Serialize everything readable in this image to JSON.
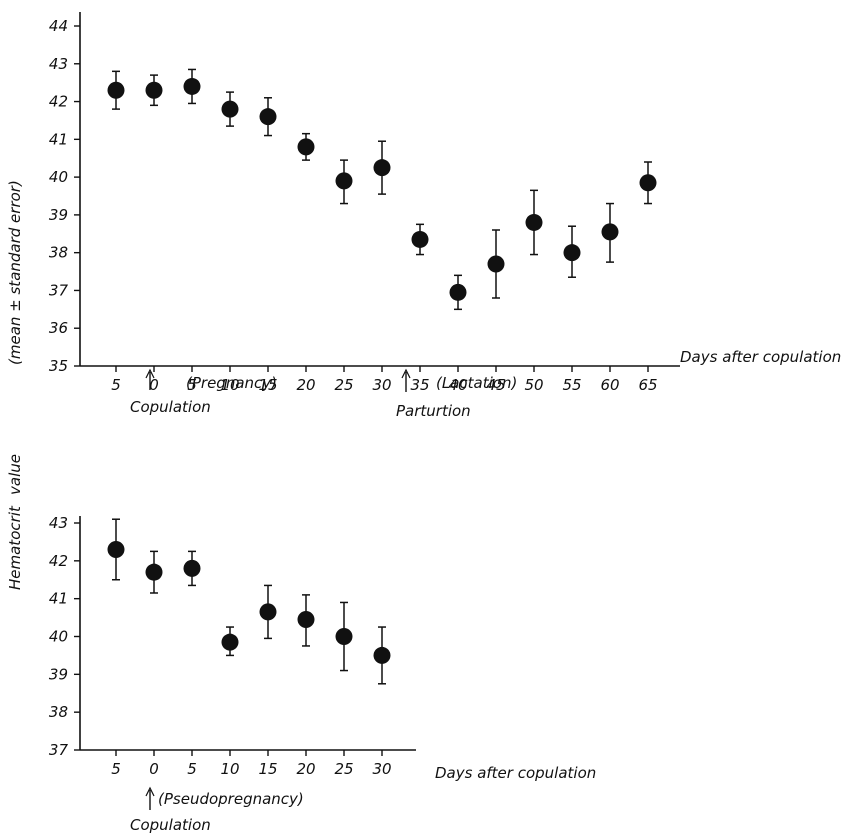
{
  "y_axis_label": {
    "line1": "Hematocrit",
    "line2": "value",
    "line3": "(mean ± standard error)"
  },
  "chart_data": [
    {
      "type": "scatter",
      "error_bars": "mean ± standard error",
      "x_tick_labels": [
        "5",
        "0",
        "5",
        "10",
        "15",
        "20",
        "25",
        "30",
        "35",
        "40",
        "45",
        "50",
        "55",
        "60",
        "65"
      ],
      "xlabel": "Days after copulation",
      "ylim": [
        35,
        44
      ],
      "y_ticks": [
        35,
        36,
        37,
        38,
        39,
        40,
        41,
        42,
        43,
        44
      ],
      "points": [
        {
          "x": "5",
          "y": 42.3,
          "low": 41.8,
          "high": 42.8
        },
        {
          "x": "0",
          "y": 42.3,
          "low": 41.9,
          "high": 42.7
        },
        {
          "x": "5",
          "y": 42.4,
          "low": 41.95,
          "high": 42.85
        },
        {
          "x": "10",
          "y": 41.8,
          "low": 41.35,
          "high": 42.25
        },
        {
          "x": "15",
          "y": 41.6,
          "low": 41.1,
          "high": 42.1
        },
        {
          "x": "20",
          "y": 40.8,
          "low": 40.45,
          "high": 41.15
        },
        {
          "x": "25",
          "y": 39.9,
          "low": 39.3,
          "high": 40.45
        },
        {
          "x": "30",
          "y": 40.25,
          "low": 39.55,
          "high": 40.95
        },
        {
          "x": "35",
          "y": 38.35,
          "low": 37.95,
          "high": 38.75
        },
        {
          "x": "40",
          "y": 36.95,
          "low": 36.5,
          "high": 37.4
        },
        {
          "x": "45",
          "y": 37.7,
          "low": 36.8,
          "high": 38.6
        },
        {
          "x": "50",
          "y": 38.8,
          "low": 37.95,
          "high": 39.65
        },
        {
          "x": "55",
          "y": 38.0,
          "low": 37.35,
          "high": 38.7
        },
        {
          "x": "60",
          "y": 38.55,
          "low": 37.75,
          "high": 39.3
        },
        {
          "x": "65",
          "y": 39.85,
          "low": 39.3,
          "high": 40.4
        }
      ],
      "annotations": {
        "copulation": "Copulation",
        "pregnancy": "(Pregnancy)",
        "parturition": "Parturtion",
        "lactation": "(Lactation)"
      }
    },
    {
      "type": "scatter",
      "error_bars": "mean ± standard error",
      "x_tick_labels": [
        "5",
        "0",
        "5",
        "10",
        "15",
        "20",
        "25",
        "30"
      ],
      "xlabel": "Days after copulation",
      "ylim": [
        37,
        43
      ],
      "y_ticks": [
        37,
        38,
        39,
        40,
        41,
        42,
        43
      ],
      "points": [
        {
          "x": "5",
          "y": 42.3,
          "low": 41.5,
          "high": 43.1
        },
        {
          "x": "0",
          "y": 41.7,
          "low": 41.15,
          "high": 42.25
        },
        {
          "x": "5",
          "y": 41.8,
          "low": 41.35,
          "high": 42.25
        },
        {
          "x": "10",
          "y": 39.85,
          "low": 39.5,
          "high": 40.25
        },
        {
          "x": "15",
          "y": 40.65,
          "low": 39.95,
          "high": 41.35
        },
        {
          "x": "20",
          "y": 40.45,
          "low": 39.75,
          "high": 41.1
        },
        {
          "x": "25",
          "y": 40.0,
          "low": 39.1,
          "high": 40.9
        },
        {
          "x": "30",
          "y": 39.5,
          "low": 38.75,
          "high": 40.25
        }
      ],
      "annotations": {
        "copulation": "Copulation",
        "pseudopregnancy": "(Pseudopregnancy)"
      }
    }
  ]
}
